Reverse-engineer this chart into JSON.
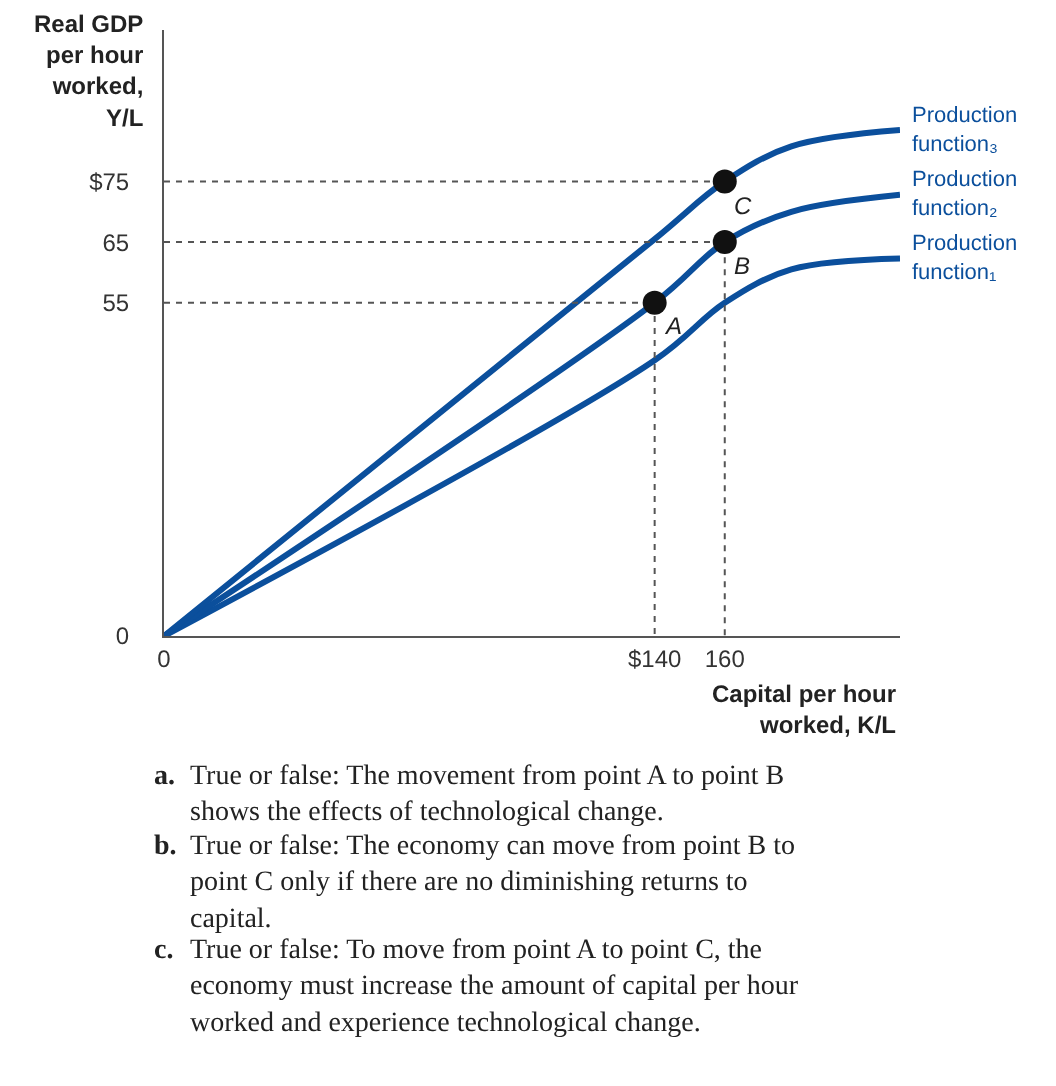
{
  "chart_data": {
    "type": "line",
    "ylabel": "Real GDP\nper hour\nworked,\nY/L",
    "xlabel": "Capital per hour\nworked, K/L",
    "xlim": [
      0,
      210
    ],
    "ylim": [
      0,
      100
    ],
    "xticks": [
      0,
      {
        "value": 140,
        "label": "$140"
      },
      160
    ],
    "yticks": [
      0,
      55,
      65,
      {
        "value": 75,
        "label": "$75"
      }
    ],
    "series": [
      {
        "name": "Production function₁",
        "color": "#0b4f9c",
        "x": [
          0,
          140,
          160,
          179,
          210
        ],
        "values": [
          0,
          45.5,
          55,
          60.5,
          62.3
        ]
      },
      {
        "name": "Production function₂",
        "color": "#0b4f9c",
        "x": [
          0,
          140,
          160,
          179,
          210
        ],
        "values": [
          0,
          55,
          65,
          70,
          72.8
        ]
      },
      {
        "name": "Production function₃",
        "color": "#0b4f9c",
        "x": [
          0,
          140,
          160,
          179,
          210
        ],
        "values": [
          0,
          65.5,
          75,
          80.8,
          83.5
        ]
      },
      {
        "type": "line",
        "line_style": "dotted",
        "color": "#555555",
        "x": [
          0,
          140,
          140
        ],
        "values": [
          55,
          55,
          0
        ]
      },
      {
        "type": "line",
        "line_style": "dotted",
        "color": "#555555",
        "x": [
          0,
          160,
          160
        ],
        "values": [
          65,
          65,
          0
        ]
      },
      {
        "type": "line",
        "line_style": "dotted",
        "color": "#555555",
        "x": [
          0,
          160
        ],
        "values": [
          75,
          75
        ]
      },
      {
        "type": "scatter",
        "marker": "circle",
        "color": "#111111",
        "x": [
          140,
          160,
          160
        ],
        "values": [
          55,
          65,
          75
        ],
        "value_labels": [
          "A",
          "B",
          "C"
        ]
      }
    ],
    "annotations": [
      "a. True or false: The movement from point A to point B shows the effects of technological change.",
      "b. True or false: The economy can move from point B to point C only if there are no diminishing returns to capital.",
      "c. True or false: To move from point A to point C, the economy must increase the amount of capital per hour worked and experience technological change."
    ]
  }
}
